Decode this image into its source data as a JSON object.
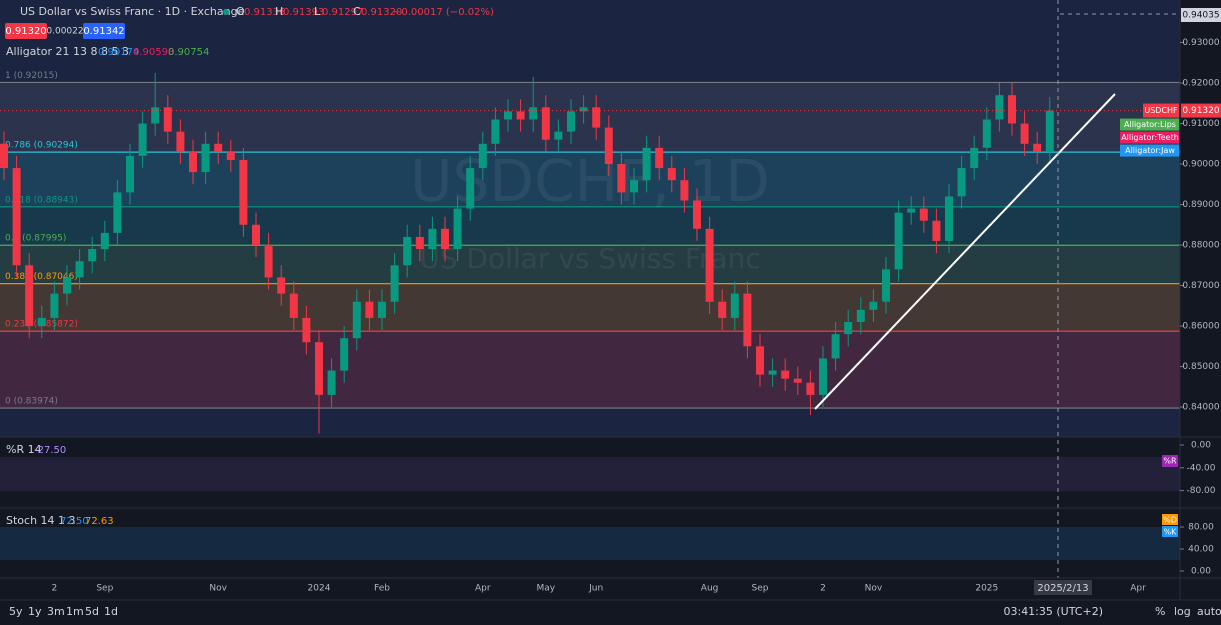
{
  "header": {
    "title": "US Dollar vs Swiss Franc · 1D · Exchange",
    "ohlc": [
      {
        "k": "O",
        "v": "0.91336"
      },
      {
        "k": "H",
        "v": "0.91393"
      },
      {
        "k": "L",
        "v": "0.91297"
      },
      {
        "k": "C",
        "v": "0.91320"
      }
    ],
    "change": "−0.00017 (−0.02%)",
    "sell": "0.91320",
    "spread": "0.00022",
    "buy": "0.91342",
    "indicator": "Alligator 21 13 8 8 5 3",
    "indicator_values": [
      "0.90174",
      "0.90593",
      "0.90754"
    ],
    "watermark": "USDCHF, 1D",
    "watermark_sub": "US Dollar vs Swiss Franc"
  },
  "chart_data": {
    "type": "candlestick",
    "ylim": [
      0.8326,
      0.9405
    ],
    "yticks": [
      {
        "value": 0.84,
        "label": "0.84000"
      },
      {
        "value": 0.85,
        "label": "0.85000"
      },
      {
        "value": 0.86,
        "label": "0.86000"
      },
      {
        "value": 0.87,
        "label": "0.87000"
      },
      {
        "value": 0.88,
        "label": "0.88000"
      },
      {
        "value": 0.89,
        "label": "0.89000"
      },
      {
        "value": 0.9,
        "label": "0.90000"
      },
      {
        "value": 0.91,
        "label": "0.91000"
      },
      {
        "value": 0.92,
        "label": "0.92000"
      },
      {
        "value": 0.93,
        "label": "0.93000"
      }
    ],
    "top_price": "0.94035",
    "crosshair_date": "2025/2/13",
    "categories": [
      null,
      null,
      null,
      null,
      "2",
      null,
      null,
      null,
      "Sep",
      null,
      null,
      null,
      null,
      null,
      null,
      null,
      null,
      "Nov",
      null,
      null,
      null,
      null,
      null,
      null,
      null,
      "2024",
      null,
      null,
      null,
      null,
      "Feb",
      null,
      null,
      null,
      null,
      null,
      null,
      null,
      "Apr",
      null,
      null,
      null,
      null,
      "May",
      null,
      null,
      null,
      "Jun",
      null,
      null,
      null,
      null,
      null,
      null,
      null,
      null,
      "Aug",
      null,
      null,
      null,
      "Sep",
      null,
      null,
      null,
      null,
      "2",
      null,
      null,
      null,
      "Nov",
      null,
      null,
      null,
      null,
      null,
      null,
      null,
      null,
      "2025",
      null,
      null,
      null,
      null,
      null,
      null,
      null,
      null,
      null,
      null,
      null,
      "Apr"
    ],
    "series": [
      {
        "name": "USDCHF",
        "up_color": "#089981",
        "down_color": "#f23645",
        "open": [
          0.905,
          0.899,
          0.875,
          0.86,
          0.862,
          0.868,
          0.872,
          0.876,
          0.879,
          0.883,
          0.893,
          0.902,
          0.91,
          0.914,
          0.908,
          0.903,
          0.898,
          0.905,
          0.903,
          0.901,
          0.885,
          0.88,
          0.872,
          0.868,
          0.862,
          0.856,
          0.843,
          0.849,
          0.857,
          0.866,
          0.862,
          0.866,
          0.875,
          0.882,
          0.879,
          0.884,
          0.879,
          0.889,
          0.899,
          0.905,
          0.911,
          0.913,
          0.911,
          0.914,
          0.906,
          0.908,
          0.913,
          0.914,
          0.909,
          0.9,
          0.893,
          0.896,
          0.904,
          0.899,
          0.896,
          0.891,
          0.884,
          0.866,
          0.862,
          0.868,
          0.855,
          0.848,
          0.849,
          0.847,
          0.846,
          0.843,
          0.852,
          0.858,
          0.861,
          0.864,
          0.866,
          0.874,
          0.888,
          0.889,
          0.886,
          0.881,
          0.892,
          0.899,
          0.904,
          0.911,
          0.917,
          0.91,
          0.905,
          0.903,
          null,
          null,
          null,
          null,
          null,
          null,
          null
        ],
        "high": [
          0.908,
          0.902,
          0.878,
          0.865,
          0.871,
          0.875,
          0.879,
          0.882,
          0.886,
          0.896,
          0.905,
          0.913,
          0.9225,
          0.917,
          0.911,
          0.906,
          0.908,
          0.908,
          0.906,
          0.904,
          0.888,
          0.883,
          0.875,
          0.871,
          0.865,
          0.859,
          0.852,
          0.86,
          0.869,
          0.869,
          0.869,
          0.878,
          0.885,
          0.885,
          0.887,
          0.887,
          0.892,
          0.902,
          0.908,
          0.914,
          0.916,
          0.916,
          0.9215,
          0.917,
          0.911,
          0.916,
          0.917,
          0.917,
          0.912,
          0.903,
          0.899,
          0.907,
          0.907,
          0.902,
          0.899,
          0.894,
          0.887,
          0.869,
          0.871,
          0.871,
          0.858,
          0.852,
          0.852,
          0.85,
          0.849,
          0.855,
          0.861,
          0.864,
          0.867,
          0.869,
          0.877,
          0.891,
          0.892,
          0.892,
          0.889,
          0.895,
          0.902,
          0.907,
          0.914,
          0.92,
          0.92,
          0.913,
          0.908,
          0.9165,
          null,
          null,
          null,
          null,
          null,
          null,
          null
        ],
        "low": [
          0.896,
          0.872,
          0.857,
          0.857,
          0.859,
          0.865,
          0.869,
          0.873,
          0.876,
          0.88,
          0.89,
          0.899,
          0.907,
          0.905,
          0.9,
          0.895,
          0.895,
          0.9,
          0.898,
          0.882,
          0.877,
          0.869,
          0.865,
          0.859,
          0.853,
          0.8335,
          0.84,
          0.846,
          0.854,
          0.859,
          0.859,
          0.863,
          0.872,
          0.876,
          0.876,
          0.876,
          0.876,
          0.886,
          0.896,
          0.902,
          0.908,
          0.908,
          0.908,
          0.903,
          0.903,
          0.905,
          0.91,
          0.906,
          0.897,
          0.89,
          0.89,
          0.893,
          0.896,
          0.893,
          0.888,
          0.881,
          0.863,
          0.859,
          0.859,
          0.852,
          0.845,
          0.845,
          0.844,
          0.843,
          0.838,
          0.84,
          0.849,
          0.855,
          0.858,
          0.861,
          0.863,
          0.871,
          0.885,
          0.883,
          0.878,
          0.878,
          0.889,
          0.896,
          0.901,
          0.908,
          0.907,
          0.902,
          0.9,
          0.9,
          null,
          null,
          null,
          null,
          null,
          null,
          null
        ],
        "close": [
          0.899,
          0.875,
          0.86,
          0.862,
          0.868,
          0.872,
          0.876,
          0.879,
          0.883,
          0.893,
          0.902,
          0.91,
          0.914,
          0.908,
          0.903,
          0.898,
          0.905,
          0.903,
          0.901,
          0.885,
          0.88,
          0.872,
          0.868,
          0.862,
          0.856,
          0.843,
          0.849,
          0.857,
          0.866,
          0.862,
          0.866,
          0.875,
          0.882,
          0.879,
          0.884,
          0.879,
          0.889,
          0.899,
          0.905,
          0.911,
          0.913,
          0.911,
          0.914,
          0.906,
          0.908,
          0.913,
          0.914,
          0.909,
          0.9,
          0.893,
          0.896,
          0.904,
          0.899,
          0.896,
          0.891,
          0.884,
          0.866,
          0.862,
          0.868,
          0.855,
          0.848,
          0.849,
          0.847,
          0.846,
          0.843,
          0.852,
          0.858,
          0.861,
          0.864,
          0.866,
          0.874,
          0.888,
          0.889,
          0.886,
          0.881,
          0.892,
          0.899,
          0.904,
          0.911,
          0.917,
          0.91,
          0.905,
          0.903,
          0.9132,
          null,
          null,
          null,
          null,
          null,
          null,
          null
        ]
      }
    ],
    "last_price": "0.91320",
    "fib_levels": [
      {
        "label": "1 (0.92015)",
        "value": 0.92015,
        "color": "#787b86"
      },
      {
        "label": "0.786 (0.90294)",
        "value": 0.90294,
        "color": "#26c6da"
      },
      {
        "label": "0.618 (0.88943)",
        "value": 0.88943,
        "color": "#089981"
      },
      {
        "label": "0.5 (0.87995)",
        "value": 0.87995,
        "color": "#4caf50"
      },
      {
        "label": "0.382 (0.87046)",
        "value": 0.87046,
        "color": "#ff9800"
      },
      {
        "label": "0.236 (0.85872)",
        "value": 0.85872,
        "color": "#f23645"
      },
      {
        "label": "0 (0.83974)",
        "value": 0.83974,
        "color": "#787b86"
      }
    ],
    "legend": [
      {
        "name": "Alligator:Lips",
        "color": "#4caf50"
      },
      {
        "name": "Alligator:Teeth",
        "color": "#e91e63"
      },
      {
        "name": "Alligator:Jaw",
        "color": "#2196f3"
      }
    ]
  },
  "wr_pane": {
    "label": "%R 14",
    "value": "-27.50",
    "tag": "%R",
    "ylim": [
      -100,
      0
    ],
    "yticks": [
      {
        "value": 0,
        "label": "0.00"
      },
      {
        "value": -40,
        "label": "-40.00"
      },
      {
        "value": -80,
        "label": "-80.00"
      }
    ]
  },
  "stoch_pane": {
    "label": "Stoch 14 1 3",
    "values": [
      "72.50",
      "72.63"
    ],
    "tags": [
      "%D",
      "%K"
    ],
    "ylim": [
      0,
      100
    ],
    "yticks": [
      {
        "value": 0,
        "label": "0.00"
      },
      {
        "value": 40,
        "label": "40.00"
      },
      {
        "value": 80,
        "label": "80.00"
      }
    ]
  },
  "footer": {
    "ranges": [
      "5y",
      "1y",
      "3m",
      "1m",
      "5d",
      "1d"
    ],
    "clock": "03:41:35 (UTC+2)",
    "options": [
      "%",
      "log",
      "auto"
    ]
  }
}
